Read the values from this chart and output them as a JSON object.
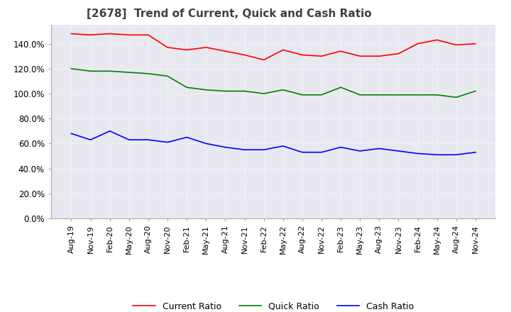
{
  "title": "[2678]  Trend of Current, Quick and Cash Ratio",
  "title_fontsize": 11,
  "background_color": "#ffffff",
  "plot_background_color": "#e8e8f0",
  "grid_color": "#ffffff",
  "ylim": [
    0,
    1.55
  ],
  "yticks": [
    0.0,
    0.2,
    0.4,
    0.6,
    0.8,
    1.0,
    1.2,
    1.4
  ],
  "x_labels": [
    "Aug-19",
    "Nov-19",
    "Feb-20",
    "May-20",
    "Aug-20",
    "Nov-20",
    "Feb-21",
    "May-21",
    "Aug-21",
    "Nov-21",
    "Feb-22",
    "May-22",
    "Aug-22",
    "Nov-22",
    "Feb-23",
    "May-23",
    "Aug-23",
    "Nov-23",
    "Feb-24",
    "May-24",
    "Aug-24",
    "Nov-24"
  ],
  "current_ratio": [
    1.48,
    1.47,
    1.48,
    1.47,
    1.47,
    1.37,
    1.35,
    1.37,
    1.34,
    1.31,
    1.27,
    1.35,
    1.31,
    1.3,
    1.34,
    1.3,
    1.3,
    1.32,
    1.4,
    1.43,
    1.39,
    1.4
  ],
  "quick_ratio": [
    1.2,
    1.18,
    1.18,
    1.17,
    1.16,
    1.14,
    1.05,
    1.03,
    1.02,
    1.02,
    1.0,
    1.03,
    0.99,
    0.99,
    1.05,
    0.99,
    0.99,
    0.99,
    0.99,
    0.99,
    0.97,
    1.02
  ],
  "cash_ratio": [
    0.68,
    0.63,
    0.7,
    0.63,
    0.63,
    0.61,
    0.65,
    0.6,
    0.57,
    0.55,
    0.55,
    0.58,
    0.53,
    0.53,
    0.57,
    0.54,
    0.56,
    0.54,
    0.52,
    0.51,
    0.51,
    0.53
  ],
  "current_color": "#ff0000",
  "quick_color": "#008000",
  "cash_color": "#0000ff",
  "legend_labels": [
    "Current Ratio",
    "Quick Ratio",
    "Cash Ratio"
  ]
}
